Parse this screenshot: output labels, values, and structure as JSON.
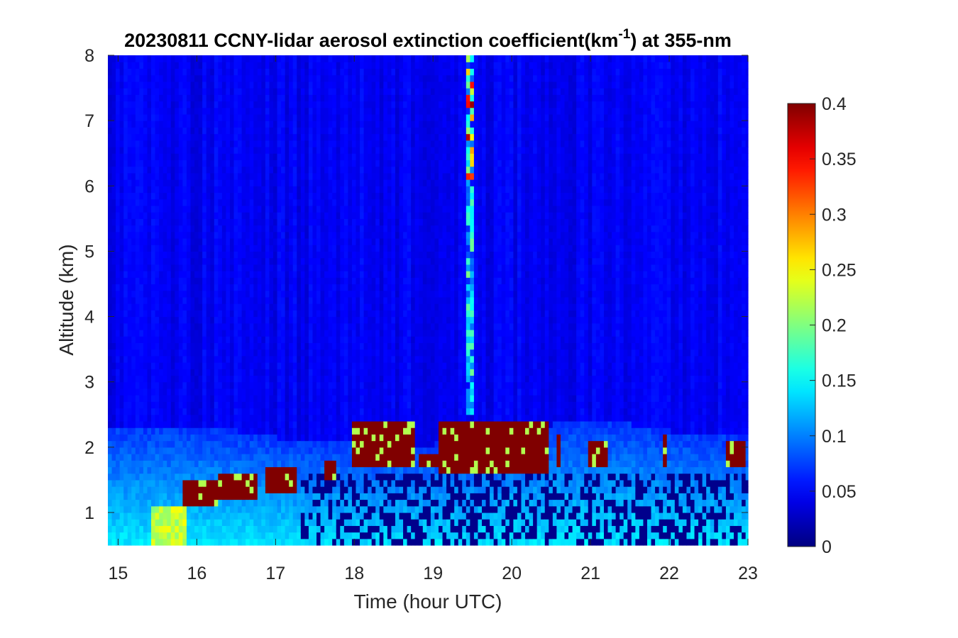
{
  "chart_data": {
    "type": "heatmap",
    "title_main": "20230811 CCNY-lidar aerosol extinction coefficient(km",
    "title_sup": "-1",
    "title_end": ") at 355-nm",
    "xlabel": "Time (hour UTC)",
    "ylabel": "Altitude (km)",
    "xlim": [
      14.87,
      23.0
    ],
    "ylim": [
      0.5,
      8.0
    ],
    "xticks": [
      15,
      16,
      17,
      18,
      19,
      20,
      21,
      22,
      23
    ],
    "yticks": [
      1,
      2,
      3,
      4,
      5,
      6,
      7,
      8
    ],
    "colorbar": {
      "colormap": "jet",
      "clim": [
        0,
        0.4
      ],
      "ticks": [
        "0",
        "0.05",
        "0.1",
        "0.15",
        "0.2",
        "0.25",
        "0.3",
        "0.35",
        "0.4"
      ],
      "tick_values": [
        0,
        0.05,
        0.1,
        0.15,
        0.2,
        0.25,
        0.3,
        0.35,
        0.4
      ]
    },
    "description_values": {
      "free_troposphere_background": 0.03,
      "boundary_layer_top_km": [
        2.3,
        2.3,
        2.1,
        2.0,
        2.0,
        2.2,
        2.4,
        2.2,
        2.1
      ],
      "boundary_layer_top_hours": [
        15,
        16,
        17,
        18,
        19,
        20,
        21,
        22,
        23
      ],
      "cloud_layers": [
        {
          "t0": 15.82,
          "t1": 16.25,
          "base": 1.0,
          "top": 1.45,
          "value": 0.4
        },
        {
          "t0": 16.25,
          "t1": 16.75,
          "base": 1.15,
          "top": 1.55,
          "value": 0.4
        },
        {
          "t0": 16.85,
          "t1": 17.25,
          "base": 1.3,
          "top": 1.7,
          "value": 0.4
        },
        {
          "t0": 17.6,
          "t1": 17.75,
          "base": 1.5,
          "top": 1.75,
          "value": 0.4
        },
        {
          "t0": 17.95,
          "t1": 18.75,
          "base": 1.65,
          "top": 2.4,
          "value": 0.4
        },
        {
          "t0": 18.8,
          "t1": 19.05,
          "base": 1.7,
          "top": 1.85,
          "value": 0.4
        },
        {
          "t0": 19.05,
          "t1": 20.45,
          "base": 1.6,
          "top": 2.4,
          "value": 0.4
        },
        {
          "t0": 20.55,
          "t1": 20.6,
          "base": 1.7,
          "top": 2.2,
          "value": 0.4
        },
        {
          "t0": 20.95,
          "t1": 21.2,
          "base": 1.65,
          "top": 2.1,
          "value": 0.4
        },
        {
          "t0": 21.9,
          "t1": 21.95,
          "base": 1.7,
          "top": 2.2,
          "value": 0.4
        },
        {
          "t0": 22.7,
          "t1": 22.95,
          "base": 1.65,
          "top": 2.1,
          "value": 0.4
        }
      ],
      "high_plume": {
        "t0": 19.4,
        "t1": 19.52,
        "base": 2.5,
        "top": 8.0,
        "value": 0.25
      }
    }
  }
}
